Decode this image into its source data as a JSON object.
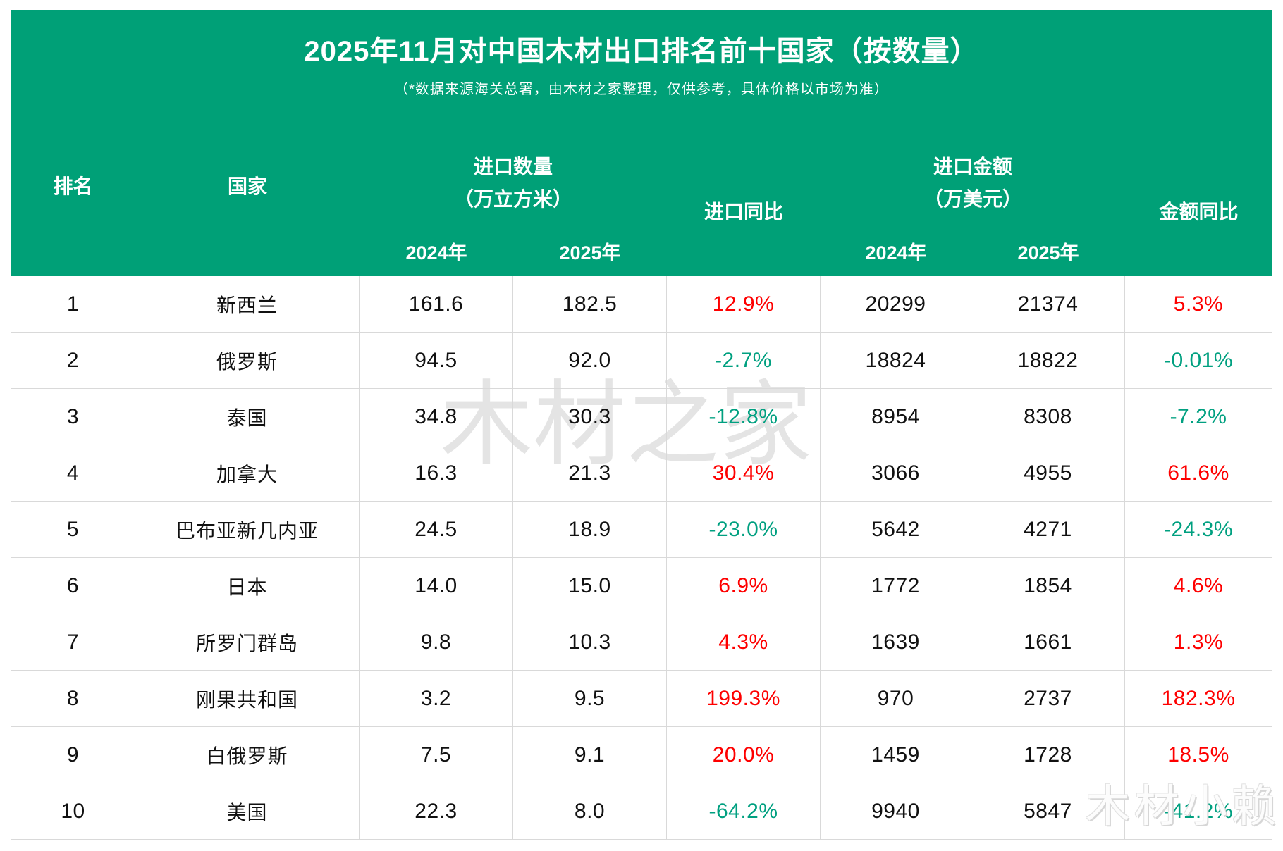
{
  "header": {
    "title": "2025年11月对中国木材出口排名前十国家（按数量）",
    "subtitle": "（*数据来源海关总署，由木材之家整理，仅供参考，具体价格以市场为准）",
    "columns": {
      "rank": "排名",
      "country": "国家",
      "qty_line1": "进口数量",
      "qty_line2": "（万立方米）",
      "qty_yoy": "进口同比",
      "amt_line1": "进口金额",
      "amt_line2": "（万美元）",
      "amt_yoy": "金额同比",
      "year_2024": "2024年",
      "year_2025": "2025年"
    }
  },
  "table": {
    "rows": [
      {
        "rank": "1",
        "country": "新西兰",
        "qty_2024": "161.6",
        "qty_2025": "182.5",
        "qty_yoy": "12.9%",
        "amt_2024": "20299",
        "amt_2025": "21374",
        "amt_yoy": "5.3%"
      },
      {
        "rank": "2",
        "country": "俄罗斯",
        "qty_2024": "94.5",
        "qty_2025": "92.0",
        "qty_yoy": "-2.7%",
        "amt_2024": "18824",
        "amt_2025": "18822",
        "amt_yoy": "-0.01%"
      },
      {
        "rank": "3",
        "country": "泰国",
        "qty_2024": "34.8",
        "qty_2025": "30.3",
        "qty_yoy": "-12.8%",
        "amt_2024": "8954",
        "amt_2025": "8308",
        "amt_yoy": "-7.2%"
      },
      {
        "rank": "4",
        "country": "加拿大",
        "qty_2024": "16.3",
        "qty_2025": "21.3",
        "qty_yoy": "30.4%",
        "amt_2024": "3066",
        "amt_2025": "4955",
        "amt_yoy": "61.6%"
      },
      {
        "rank": "5",
        "country": "巴布亚新几内亚",
        "qty_2024": "24.5",
        "qty_2025": "18.9",
        "qty_yoy": "-23.0%",
        "amt_2024": "5642",
        "amt_2025": "4271",
        "amt_yoy": "-24.3%"
      },
      {
        "rank": "6",
        "country": "日本",
        "qty_2024": "14.0",
        "qty_2025": "15.0",
        "qty_yoy": "6.9%",
        "amt_2024": "1772",
        "amt_2025": "1854",
        "amt_yoy": "4.6%"
      },
      {
        "rank": "7",
        "country": "所罗门群岛",
        "qty_2024": "9.8",
        "qty_2025": "10.3",
        "qty_yoy": "4.3%",
        "amt_2024": "1639",
        "amt_2025": "1661",
        "amt_yoy": "1.3%"
      },
      {
        "rank": "8",
        "country": "刚果共和国",
        "qty_2024": "3.2",
        "qty_2025": "9.5",
        "qty_yoy": "199.3%",
        "amt_2024": "970",
        "amt_2025": "2737",
        "amt_yoy": "182.3%"
      },
      {
        "rank": "9",
        "country": "白俄罗斯",
        "qty_2024": "7.5",
        "qty_2025": "9.1",
        "qty_yoy": "20.0%",
        "amt_2024": "1459",
        "amt_2025": "1728",
        "amt_yoy": "18.5%"
      },
      {
        "rank": "10",
        "country": "美国",
        "qty_2024": "22.3",
        "qty_2025": "8.0",
        "qty_yoy": "-64.2%",
        "amt_2024": "9940",
        "amt_2025": "5847",
        "amt_yoy": "-41.2%"
      }
    ]
  },
  "watermarks": {
    "center": "木材之家",
    "corner": "木材小赖"
  },
  "colors": {
    "header_green": "#00a077",
    "up_red": "#fe0000",
    "down_green": "#00a080",
    "grid_line": "#d9d9d9"
  }
}
